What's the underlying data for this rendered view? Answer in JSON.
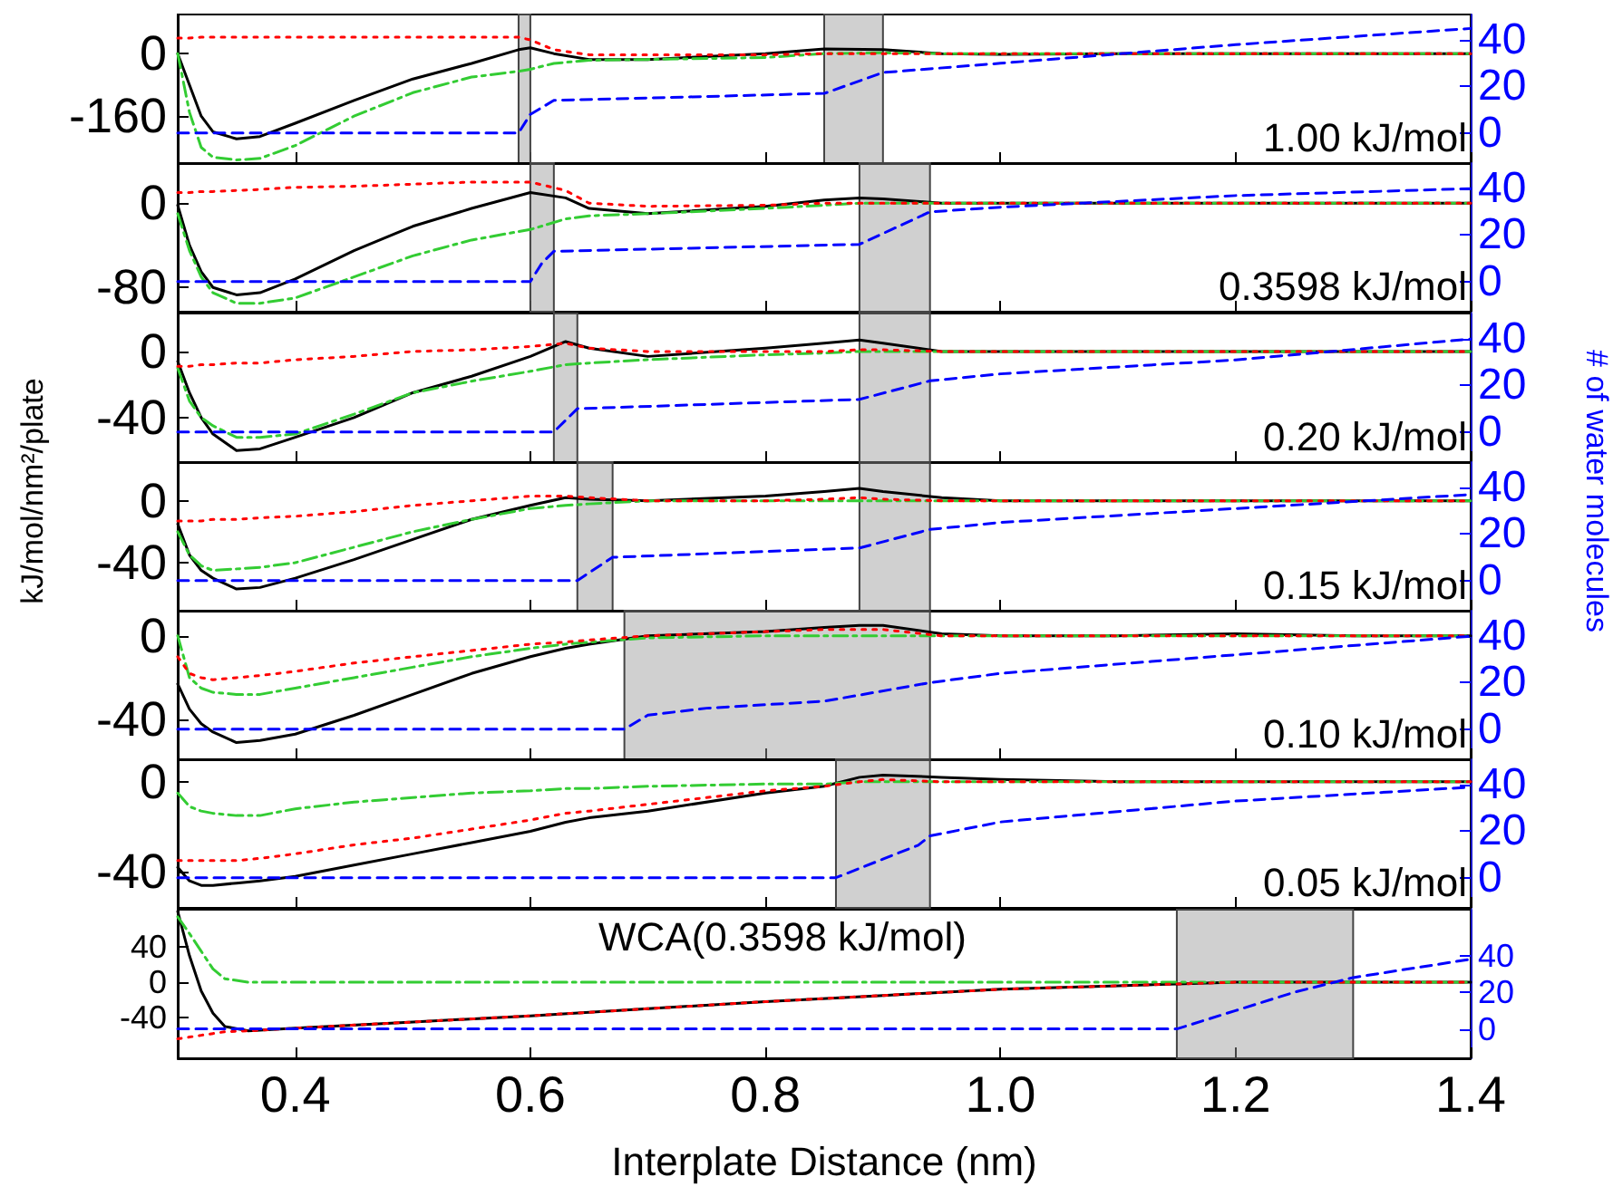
{
  "chart_data": [
    {
      "type": "line",
      "annotations": [
        "1.00 kJ/mol"
      ],
      "tick_labels": "y",
      "grid": false,
      "x": [
        0.3,
        0.31,
        0.32,
        0.33,
        0.35,
        0.37,
        0.4,
        0.45,
        0.5,
        0.55,
        0.59,
        0.6,
        0.62,
        0.65,
        0.7,
        0.8,
        0.85,
        0.9,
        0.95,
        1.0,
        1.1,
        1.2,
        1.3,
        1.4
      ],
      "xlim": [
        0.3,
        1.4
      ],
      "xticks": [
        0.4,
        0.6,
        0.8,
        1,
        1.2,
        1.4
      ],
      "ylim": [
        -280,
        100
      ],
      "yticks": [
        -160,
        0
      ],
      "y2lim": [
        -13,
        51
      ],
      "y2ticks": [
        0,
        20,
        40
      ],
      "bands": [
        {
          "axis": "x",
          "from": 0.59,
          "to": 0.6
        },
        {
          "axis": "x",
          "from": 0.85,
          "to": 0.9
        }
      ],
      "series": [
        {
          "color": "#ff0000",
          "line_style": "dotted",
          "values": [
            40,
            40,
            42,
            42,
            42,
            42,
            42,
            42,
            42,
            42,
            42,
            35,
            10,
            -3,
            -3,
            -3,
            0,
            0,
            0,
            0,
            0,
            0,
            0,
            0
          ]
        },
        {
          "color": "#33cc33",
          "line_style": "dashdot",
          "values": [
            0,
            -150,
            -240,
            -265,
            -272,
            -268,
            -235,
            -160,
            -100,
            -60,
            -45,
            -40,
            -25,
            -17,
            -15,
            -10,
            0,
            2,
            0,
            0,
            0,
            0,
            0,
            0
          ]
        },
        {
          "color": "#000000",
          "line_style": "solid",
          "values": [
            0,
            -80,
            -160,
            -200,
            -218,
            -212,
            -178,
            -120,
            -65,
            -25,
            10,
            15,
            0,
            -15,
            -15,
            0,
            12,
            10,
            0,
            -2,
            0,
            0,
            0,
            0
          ]
        },
        {
          "color": "#0000ff",
          "line_style": "dashed",
          "axis": "y2",
          "x": [
            0.3,
            0.59,
            0.6,
            0.62,
            0.85,
            0.9,
            1.0,
            1.2,
            1.4
          ],
          "values": [
            0,
            0,
            8,
            14,
            17,
            26,
            30,
            38,
            45
          ]
        }
      ]
    },
    {
      "type": "line",
      "annotations": [
        "0.3598 kJ/mol"
      ],
      "tick_labels": "y",
      "grid": false,
      "x": [
        0.3,
        0.31,
        0.32,
        0.33,
        0.35,
        0.37,
        0.4,
        0.45,
        0.5,
        0.55,
        0.6,
        0.63,
        0.65,
        0.7,
        0.8,
        0.85,
        0.88,
        0.9,
        0.95,
        1.0,
        1.1,
        1.2,
        1.3,
        1.4
      ],
      "xlim": [
        0.3,
        1.4
      ],
      "xticks": [
        0.4,
        0.6,
        0.8,
        1,
        1.2,
        1.4
      ],
      "ylim": [
        -103,
        38
      ],
      "yticks": [
        -80,
        0
      ],
      "y2lim": [
        -13,
        51
      ],
      "y2ticks": [
        0,
        20,
        40
      ],
      "bands": [
        {
          "axis": "x",
          "from": 0.6,
          "to": 0.62
        },
        {
          "axis": "x",
          "from": 0.88,
          "to": 0.94
        }
      ],
      "series": [
        {
          "color": "#ff0000",
          "line_style": "dotted",
          "values": [
            10,
            10,
            11,
            11,
            12,
            13,
            15,
            16,
            18,
            20,
            20,
            12,
            0,
            -3,
            -2,
            0,
            0,
            0,
            0,
            0,
            0,
            0,
            0,
            0
          ]
        },
        {
          "color": "#33cc33",
          "line_style": "dashdot",
          "values": [
            -10,
            -45,
            -70,
            -85,
            -95,
            -95,
            -90,
            -70,
            -50,
            -35,
            -25,
            -15,
            -12,
            -10,
            -5,
            -2,
            0,
            0,
            0,
            0,
            0,
            0,
            0,
            0
          ]
        },
        {
          "color": "#000000",
          "line_style": "solid",
          "values": [
            -2,
            -40,
            -65,
            -80,
            -87,
            -85,
            -72,
            -45,
            -22,
            -5,
            10,
            5,
            -5,
            -10,
            -3,
            3,
            5,
            4,
            0,
            0,
            0,
            0,
            0,
            0
          ]
        },
        {
          "color": "#0000ff",
          "line_style": "dashed",
          "axis": "y2",
          "x": [
            0.3,
            0.6,
            0.61,
            0.62,
            0.88,
            0.94,
            1.0,
            1.2,
            1.4
          ],
          "values": [
            0,
            0,
            8,
            13,
            16,
            30,
            32,
            37,
            40
          ]
        }
      ]
    },
    {
      "type": "line",
      "annotations": [
        "0.20 kJ/mol"
      ],
      "tick_labels": "y",
      "grid": false,
      "x": [
        0.3,
        0.31,
        0.32,
        0.33,
        0.35,
        0.37,
        0.4,
        0.45,
        0.5,
        0.55,
        0.6,
        0.63,
        0.65,
        0.7,
        0.8,
        0.85,
        0.88,
        0.9,
        0.95,
        1.0,
        1.1,
        1.2,
        1.3,
        1.4
      ],
      "xlim": [
        0.3,
        1.4
      ],
      "xticks": [
        0.4,
        0.6,
        0.8,
        1,
        1.2,
        1.4
      ],
      "ylim": [
        -67,
        23
      ],
      "yticks": [
        -40,
        0
      ],
      "y2lim": [
        -13,
        51
      ],
      "y2ticks": [
        0,
        20,
        40
      ],
      "bands": [
        {
          "axis": "x",
          "from": 0.62,
          "to": 0.64
        },
        {
          "axis": "x",
          "from": 0.88,
          "to": 0.94
        }
      ],
      "series": [
        {
          "color": "#ff0000",
          "line_style": "dotted",
          "values": [
            -9,
            -9,
            -8,
            -8,
            -7,
            -7,
            -5,
            -3,
            0,
            1,
            3,
            5,
            2,
            0,
            0,
            0,
            1,
            1,
            0,
            0,
            0,
            0,
            0,
            0
          ]
        },
        {
          "color": "#33cc33",
          "line_style": "dashdot",
          "values": [
            -10,
            -30,
            -40,
            -45,
            -52,
            -52,
            -50,
            -38,
            -25,
            -18,
            -12,
            -8,
            -7,
            -5,
            -2,
            -1,
            0,
            0,
            0,
            0,
            0,
            0,
            0,
            0
          ]
        },
        {
          "color": "#000000",
          "line_style": "solid",
          "values": [
            -6,
            -25,
            -40,
            -50,
            -60,
            -59,
            -52,
            -40,
            -25,
            -15,
            -3,
            6,
            2,
            -3,
            2,
            5,
            7,
            5,
            0,
            0,
            0,
            0,
            0,
            0
          ]
        },
        {
          "color": "#0000ff",
          "line_style": "dashed",
          "axis": "y2",
          "x": [
            0.3,
            0.62,
            0.63,
            0.64,
            0.88,
            0.94,
            1.0,
            1.2,
            1.4
          ],
          "values": [
            0,
            0,
            5,
            10,
            14,
            22,
            25,
            31,
            40
          ]
        }
      ]
    },
    {
      "type": "line",
      "annotations": [
        "0.15 kJ/mol"
      ],
      "tick_labels": "y",
      "grid": false,
      "ylabel": "kJ/mol/nm²/plate",
      "y2label": "# of water molecules",
      "x": [
        0.3,
        0.31,
        0.32,
        0.33,
        0.35,
        0.37,
        0.4,
        0.45,
        0.5,
        0.55,
        0.6,
        0.63,
        0.65,
        0.7,
        0.8,
        0.85,
        0.88,
        0.9,
        0.95,
        1.0,
        1.1,
        1.2,
        1.3,
        1.4
      ],
      "xlim": [
        0.3,
        1.4
      ],
      "xticks": [
        0.4,
        0.6,
        0.8,
        1,
        1.2,
        1.4
      ],
      "ylim": [
        -71,
        25
      ],
      "yticks": [
        -40,
        0
      ],
      "y2lim": [
        -13,
        51
      ],
      "y2ticks": [
        0,
        20,
        40
      ],
      "bands": [
        {
          "axis": "x",
          "from": 0.64,
          "to": 0.67
        },
        {
          "axis": "x",
          "from": 0.88,
          "to": 0.94
        }
      ],
      "series": [
        {
          "color": "#ff0000",
          "line_style": "dotted",
          "values": [
            -13,
            -13,
            -13,
            -12,
            -12,
            -11,
            -10,
            -7,
            -3,
            0,
            3,
            3,
            2,
            0,
            0,
            1,
            2,
            1,
            0,
            0,
            0,
            0,
            0,
            0
          ]
        },
        {
          "color": "#33cc33",
          "line_style": "dashdot",
          "values": [
            -20,
            -35,
            -42,
            -45,
            -44,
            -43,
            -40,
            -30,
            -20,
            -12,
            -5,
            -3,
            -2,
            0,
            0,
            0,
            0,
            0,
            0,
            0,
            0,
            0,
            0,
            0
          ]
        },
        {
          "color": "#000000",
          "line_style": "solid",
          "values": [
            -15,
            -35,
            -45,
            -50,
            -57,
            -56,
            -50,
            -38,
            -25,
            -12,
            -3,
            2,
            1,
            0,
            3,
            6,
            8,
            6,
            2,
            0,
            0,
            0,
            0,
            0
          ]
        },
        {
          "color": "#0000ff",
          "line_style": "dashed",
          "axis": "y2",
          "x": [
            0.3,
            0.64,
            0.67,
            0.88,
            0.94,
            1.0,
            1.2,
            1.4
          ],
          "values": [
            0,
            0,
            10,
            14,
            22,
            25,
            31,
            37
          ]
        }
      ]
    },
    {
      "type": "line",
      "annotations": [
        "0.10 kJ/mol"
      ],
      "tick_labels": "y",
      "grid": false,
      "x": [
        0.3,
        0.31,
        0.32,
        0.33,
        0.35,
        0.37,
        0.4,
        0.45,
        0.5,
        0.55,
        0.6,
        0.63,
        0.65,
        0.7,
        0.8,
        0.85,
        0.88,
        0.9,
        0.95,
        1.0,
        1.1,
        1.2,
        1.3,
        1.4
      ],
      "xlim": [
        0.3,
        1.4
      ],
      "xticks": [
        0.4,
        0.6,
        0.8,
        1,
        1.2,
        1.4
      ],
      "ylim": [
        -59,
        12
      ],
      "yticks": [
        -40,
        0
      ],
      "y2lim": [
        -13,
        51
      ],
      "y2ticks": [
        0,
        20,
        40
      ],
      "bands": [
        {
          "axis": "x",
          "from": 0.68,
          "to": 0.94
        }
      ],
      "series": [
        {
          "color": "#ff0000",
          "line_style": "dotted",
          "values": [
            -10,
            -18,
            -20,
            -21,
            -20,
            -19,
            -17,
            -13,
            -10,
            -7,
            -4,
            -3,
            -2,
            0,
            2,
            3,
            3,
            3,
            0,
            0,
            0,
            0,
            0,
            0
          ]
        },
        {
          "color": "#33cc33",
          "line_style": "dashdot",
          "values": [
            0,
            -20,
            -25,
            -27,
            -28,
            -28,
            -25,
            -20,
            -15,
            -10,
            -6,
            -4,
            -3,
            -1,
            0,
            0,
            0,
            0,
            0,
            0,
            0,
            0,
            0,
            0
          ]
        },
        {
          "color": "#000000",
          "line_style": "solid",
          "values": [
            -23,
            -35,
            -42,
            -46,
            -51,
            -50,
            -47,
            -38,
            -28,
            -18,
            -10,
            -6,
            -4,
            0,
            2,
            4,
            5,
            5,
            1,
            0,
            0,
            1,
            0,
            0
          ]
        },
        {
          "color": "#0000ff",
          "line_style": "dashed",
          "axis": "y2",
          "x": [
            0.3,
            0.68,
            0.7,
            0.75,
            0.85,
            0.94,
            1.0,
            1.2,
            1.4
          ],
          "values": [
            0,
            0,
            6,
            9,
            12,
            20,
            24,
            32,
            40
          ]
        }
      ]
    },
    {
      "type": "line",
      "annotations": [
        "0.05 kJ/mol"
      ],
      "tick_labels": "y",
      "grid": false,
      "x": [
        0.3,
        0.31,
        0.32,
        0.33,
        0.35,
        0.37,
        0.4,
        0.45,
        0.5,
        0.55,
        0.6,
        0.63,
        0.65,
        0.7,
        0.8,
        0.85,
        0.88,
        0.9,
        0.95,
        1.0,
        1.1,
        1.2,
        1.3,
        1.4
      ],
      "xlim": [
        0.3,
        1.4
      ],
      "xticks": [
        0.4,
        0.6,
        0.8,
        1,
        1.2,
        1.4
      ],
      "ylim": [
        -56,
        10
      ],
      "yticks": [
        -40,
        0
      ],
      "y2lim": [
        -13,
        51
      ],
      "y2ticks": [
        0,
        20,
        40
      ],
      "bands": [
        {
          "axis": "x",
          "from": 0.86,
          "to": 0.94
        }
      ],
      "series": [
        {
          "color": "#ff0000",
          "line_style": "dotted",
          "values": [
            -35,
            -35,
            -35,
            -35,
            -35,
            -34,
            -32,
            -28,
            -25,
            -21,
            -17,
            -14,
            -13,
            -10,
            -4,
            -2,
            0,
            1,
            0,
            0,
            0,
            0,
            0,
            0
          ]
        },
        {
          "color": "#33cc33",
          "line_style": "dashdot",
          "values": [
            -5,
            -11,
            -13,
            -14,
            -15,
            -15,
            -12,
            -9,
            -7,
            -5,
            -4,
            -3,
            -3,
            -2,
            -1,
            -1,
            0,
            0,
            0,
            0,
            0,
            0,
            0,
            0
          ]
        },
        {
          "color": "#000000",
          "line_style": "solid",
          "values": [
            -38,
            -44,
            -46,
            -46,
            -45,
            -44,
            -42,
            -37,
            -32,
            -27,
            -22,
            -18,
            -16,
            -13,
            -5,
            -2,
            2,
            3,
            2,
            1,
            0,
            0,
            0,
            0
          ]
        },
        {
          "color": "#0000ff",
          "line_style": "dashed",
          "axis": "y2",
          "x": [
            0.3,
            0.86,
            0.9,
            0.93,
            0.94,
            1.0,
            1.2,
            1.4
          ],
          "values": [
            0,
            0,
            8,
            14,
            18,
            24,
            33,
            39
          ]
        }
      ]
    },
    {
      "type": "line",
      "annotations": [
        "WCA(0.3598 kJ/mol)"
      ],
      "grid": false,
      "xlabel": "Interplate Distance (nm)",
      "x": [
        0.3,
        0.31,
        0.32,
        0.33,
        0.34,
        0.36,
        0.4,
        0.5,
        0.6,
        0.7,
        0.8,
        0.9,
        1.0,
        1.1,
        1.15,
        1.2,
        1.3,
        1.4
      ],
      "xlim": [
        0.3,
        1.4
      ],
      "xticks": [
        0.4,
        0.6,
        0.8,
        {
          "value": 1,
          "label": "1.0"
        },
        1.2,
        1.4
      ],
      "ylim": [
        -86,
        82
      ],
      "yticks": [
        -40,
        0,
        40
      ],
      "y2lim": [
        -16,
        65
      ],
      "y2ticks": [
        0,
        20,
        40
      ],
      "bands": [
        {
          "axis": "x",
          "from": 1.15,
          "to": 1.3
        }
      ],
      "series": [
        {
          "color": "#ff0000",
          "line_style": "dotted",
          "values": [
            -64,
            -62,
            -60,
            -58,
            -56,
            -55,
            -52,
            -45,
            -38,
            -30,
            -22,
            -15,
            -8,
            -4,
            -2,
            0,
            0,
            0
          ]
        },
        {
          "color": "#33cc33",
          "line_style": "dashdot",
          "values": [
            74,
            55,
            35,
            15,
            4,
            0,
            0,
            0,
            0,
            0,
            0,
            0,
            0,
            0,
            0,
            0,
            0,
            0
          ]
        },
        {
          "color": "#000000",
          "line_style": "solid",
          "values": [
            80,
            30,
            -10,
            -35,
            -50,
            -55,
            -52,
            -45,
            -38,
            -30,
            -22,
            -15,
            -8,
            -4,
            -2,
            0,
            0,
            0
          ]
        },
        {
          "color": "#0000ff",
          "line_style": "dashed",
          "axis": "y2",
          "x": [
            0.3,
            1.15,
            1.2,
            1.25,
            1.3,
            1.4
          ],
          "values": [
            0,
            0,
            10,
            20,
            28,
            38
          ]
        }
      ]
    }
  ]
}
